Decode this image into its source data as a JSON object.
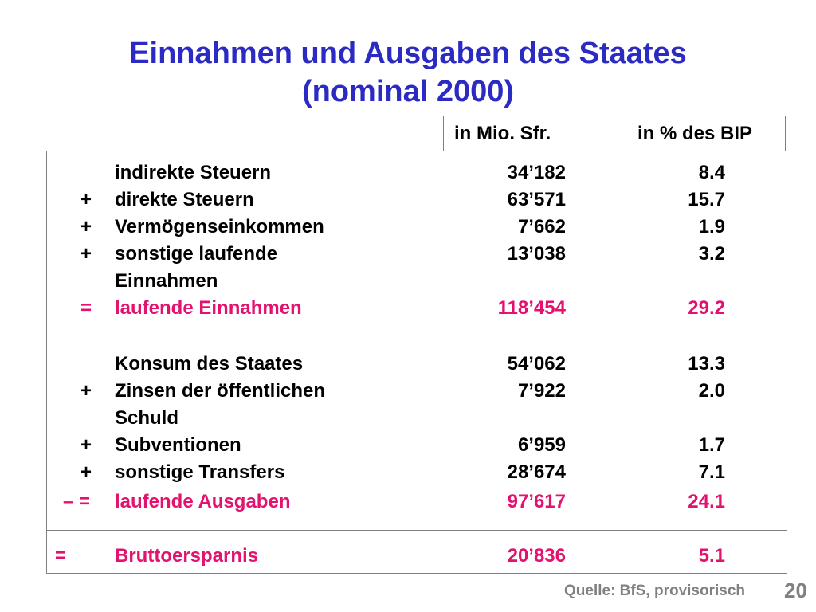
{
  "title_line1": "Einnahmen und Ausgaben des Staates",
  "title_line2": "(nominal 2000)",
  "headers": {
    "mio": "in Mio. Sfr.",
    "pct": "in % des BIP"
  },
  "rows": [
    {
      "op": "",
      "label": "indirekte Steuern",
      "value": "34’182",
      "pct": "8.4"
    },
    {
      "op": "+",
      "label": "direkte Steuern",
      "value": "63’571",
      "pct": "15.7"
    },
    {
      "op": "+",
      "label": "Vermögenseinkommen",
      "value": "7’662",
      "pct": "1.9"
    },
    {
      "op": "+",
      "label": "sonstige laufende",
      "value": "13’038",
      "pct": "3.2"
    },
    {
      "op": "",
      "label": "Einnahmen",
      "value": "",
      "pct": ""
    },
    {
      "op": "=",
      "label": "laufende Einnahmen",
      "value": "118’454",
      "pct": "29.2"
    },
    {
      "op": "",
      "label": "Konsum des Staates",
      "value": "54’062",
      "pct": "13.3"
    },
    {
      "op": "+",
      "label": "Zinsen der öffentlichen",
      "value": "7’922",
      "pct": "2.0"
    },
    {
      "op": "",
      "label": "Schuld",
      "value": "",
      "pct": ""
    },
    {
      "op": "+",
      "label": "Subventionen",
      "value": "6’959",
      "pct": "1.7"
    },
    {
      "op": "+",
      "label": "sonstige Transfers",
      "value": "28’674",
      "pct": "7.1"
    },
    {
      "op": "– =",
      "label": "laufende Ausgaben",
      "value": "97’617",
      "pct": "24.1"
    },
    {
      "op": "=",
      "label": "Bruttoersparnis",
      "value": "20’836",
      "pct": "5.1"
    }
  ],
  "source": "Quelle: BfS, provisorisch",
  "page_number": "20",
  "colors": {
    "title": "#2b2bc4",
    "highlight": "#e3126e",
    "muted": "#808080"
  }
}
